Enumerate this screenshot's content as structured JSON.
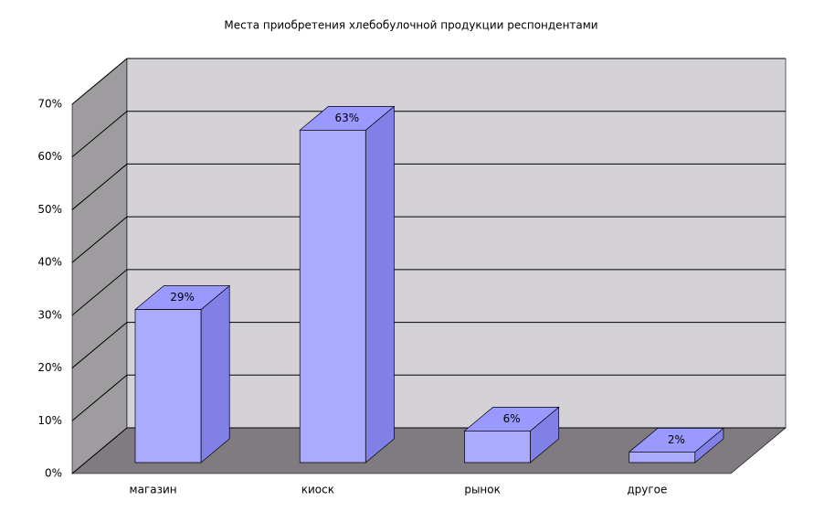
{
  "chart_data": {
    "type": "bar3d",
    "title": "Места приобретения хлебобулочной продукции респондентами",
    "categories": [
      "магазин",
      "киоск",
      "рынок",
      "другое"
    ],
    "values": [
      29,
      63,
      6,
      2
    ],
    "value_labels": [
      "29%",
      "63%",
      "6%",
      "2%"
    ],
    "color": "#aaaaff",
    "ylim": [
      0,
      70
    ],
    "yticks": [
      {
        "value": 0,
        "label": "0%"
      },
      {
        "value": 10,
        "label": "10%"
      },
      {
        "value": 20,
        "label": "20%"
      },
      {
        "value": 30,
        "label": "30%"
      },
      {
        "value": 40,
        "label": "40%"
      },
      {
        "value": 50,
        "label": "50%"
      },
      {
        "value": 60,
        "label": "60%"
      },
      {
        "value": 70,
        "label": "70%"
      }
    ],
    "grid": true
  }
}
